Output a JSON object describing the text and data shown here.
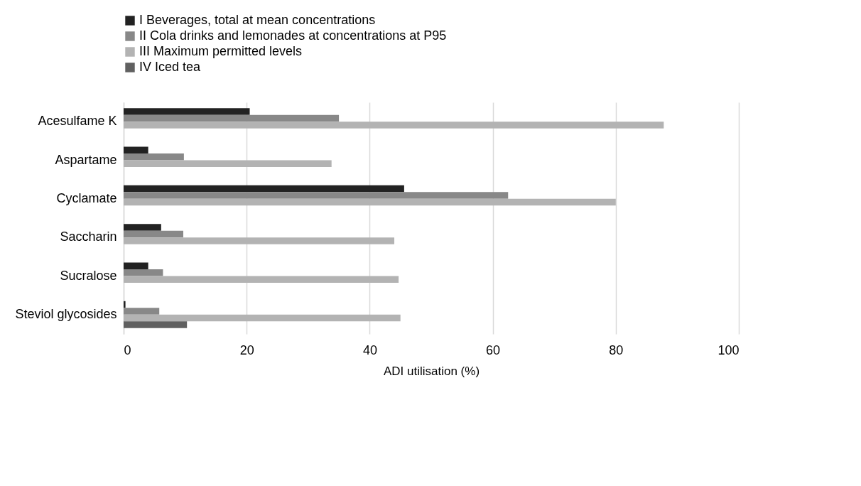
{
  "chart_data": {
    "type": "bar",
    "orientation": "horizontal",
    "xlabel": "ADI utilisation (%)",
    "categories": [
      "Acesulfame K",
      "Aspartame",
      "Cyclamate",
      "Saccharin",
      "Sucralose",
      "Steviol glycosides"
    ],
    "series": [
      {
        "name": "I Beverages, total at mean concentrations",
        "color": "#222222",
        "values": [
          20.5,
          4.0,
          45.6,
          6.1,
          4.0,
          0.3
        ]
      },
      {
        "name": "II Cola drinks and lemonades at concentrations at P95",
        "color": "#888888",
        "values": [
          35.0,
          9.8,
          62.5,
          9.7,
          6.4,
          5.8
        ]
      },
      {
        "name": "III Maximum permitted levels",
        "color": "#b3b3b3",
        "values": [
          87.8,
          33.8,
          80.0,
          44.0,
          44.7,
          45.0
        ]
      },
      {
        "name": "IV Iced tea",
        "color": "#606060",
        "values": [
          null,
          null,
          null,
          null,
          null,
          10.3
        ]
      }
    ],
    "xlim": [
      0,
      100
    ],
    "xticks": [
      0,
      20,
      40,
      60,
      80,
      100
    ],
    "grid": "x",
    "legend": "top"
  }
}
